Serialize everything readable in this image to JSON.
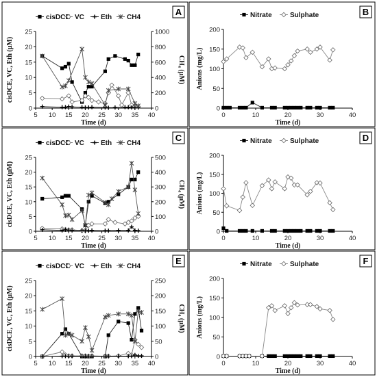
{
  "chart_data": [
    {
      "panel": "A",
      "type": "line",
      "xlabel": "Time (d)",
      "ylabel": "cisDCE, VC, Eth (μM)",
      "y2label": "CH₄ (μM)",
      "xlim": [
        5,
        40
      ],
      "ylim": [
        0,
        25
      ],
      "y2lim": [
        0,
        1000
      ],
      "xticks": [
        5,
        10,
        15,
        20,
        25,
        30,
        35,
        40
      ],
      "yticks": [
        0,
        5,
        10,
        15,
        20,
        25
      ],
      "y2ticks": [
        0,
        200,
        400,
        600,
        800,
        1000
      ],
      "legend": [
        "cisDCE",
        "VC",
        "Eth",
        "CH4"
      ],
      "series": [
        {
          "name": "cisDCE",
          "axis": "left",
          "marker": "square",
          "x": [
            7,
            13,
            14,
            15,
            16,
            19,
            20,
            21,
            22,
            26,
            27,
            29,
            32,
            33,
            34,
            35,
            36
          ],
          "y": [
            17,
            13,
            13.5,
            14.5,
            8.5,
            2,
            5,
            7,
            7,
            12,
            16,
            17,
            16,
            15.5,
            14,
            14,
            17.5
          ]
        },
        {
          "name": "VC",
          "axis": "left",
          "marker": "diamond-open",
          "x": [
            7,
            13,
            15,
            16,
            19,
            20,
            21,
            22,
            24,
            26,
            27,
            28,
            30,
            31,
            33,
            34,
            35,
            36
          ],
          "y": [
            3.2,
            3,
            4,
            2,
            2.5,
            4,
            3.5,
            2.5,
            2,
            1.5,
            5,
            7.5,
            4,
            1,
            5,
            1,
            0.5,
            0.5
          ]
        },
        {
          "name": "Eth",
          "axis": "left",
          "marker": "plus",
          "x": [
            7,
            13,
            14,
            15,
            16,
            19,
            20,
            21,
            22,
            26,
            27,
            29,
            32,
            33,
            34,
            35,
            36
          ],
          "y": [
            0.5,
            0.3,
            0.3,
            0.5,
            0.4,
            0.3,
            0.2,
            0.2,
            0.3,
            0.2,
            0.1,
            0.2,
            0.3,
            0.3,
            0.2,
            0.2,
            0.2
          ]
        },
        {
          "name": "CH4",
          "axis": "right",
          "marker": "asterisk",
          "x": [
            7,
            13,
            14,
            15,
            19,
            20,
            21,
            22,
            26,
            27,
            30,
            33,
            35,
            36
          ],
          "y": [
            680,
            275,
            290,
            360,
            770,
            400,
            340,
            320,
            40,
            230,
            250,
            250,
            60,
            30
          ]
        }
      ]
    },
    {
      "panel": "B",
      "type": "line",
      "xlabel": "Time (d)",
      "ylabel": "Anions (mg/L)",
      "xlim": [
        0,
        40
      ],
      "ylim": [
        0,
        200
      ],
      "xticks": [
        0,
        10,
        20,
        30,
        40
      ],
      "yticks": [
        0,
        50,
        100,
        150,
        200
      ],
      "legend": [
        "Nitrate",
        "Sulphate"
      ],
      "series": [
        {
          "name": "Nitrate",
          "marker": "square",
          "x": [
            0,
            1,
            2,
            5,
            6,
            7,
            9,
            12,
            15,
            16,
            19,
            20,
            21,
            22,
            23,
            24,
            26,
            27,
            29,
            30,
            33,
            34
          ],
          "y": [
            1,
            1,
            1,
            1,
            1,
            1,
            14,
            1,
            1,
            1,
            1,
            1,
            1,
            1,
            1,
            1,
            1,
            1,
            1,
            1,
            1,
            1
          ]
        },
        {
          "name": "Sulphate",
          "marker": "diamond-open",
          "x": [
            0,
            1,
            5,
            6,
            7,
            9,
            12,
            14,
            15,
            16,
            19,
            20,
            21,
            22,
            23,
            26,
            27,
            29,
            30,
            33,
            34
          ],
          "y": [
            118,
            125,
            155,
            153,
            128,
            142,
            105,
            125,
            100,
            102,
            100,
            110,
            120,
            133,
            145,
            150,
            142,
            150,
            155,
            122,
            148
          ]
        }
      ]
    },
    {
      "panel": "C",
      "type": "line",
      "xlabel": "Time (d)",
      "ylabel": "cisDCE, VC, Eth (μM)",
      "y2label": "CH₄ (μM)",
      "xlim": [
        5,
        40
      ],
      "ylim": [
        0,
        25
      ],
      "y2lim": [
        0,
        500
      ],
      "xticks": [
        5,
        10,
        15,
        20,
        25,
        30,
        35,
        40
      ],
      "yticks": [
        0,
        5,
        10,
        15,
        20,
        25
      ],
      "y2ticks": [
        0,
        100,
        200,
        300,
        400,
        500
      ],
      "legend": [
        "cisDCE",
        "VC",
        "Eth",
        "CH4"
      ],
      "series": [
        {
          "name": "cisDCE",
          "axis": "left",
          "marker": "square",
          "x": [
            7,
            13,
            14,
            15,
            19,
            20,
            21,
            22,
            26,
            27,
            30,
            33,
            34,
            35,
            36
          ],
          "y": [
            11,
            11.5,
            12,
            12,
            7.5,
            2,
            10,
            12,
            9.5,
            10,
            12.5,
            15,
            17.5,
            17.5,
            20
          ]
        },
        {
          "name": "VC",
          "axis": "left",
          "marker": "diamond-open",
          "x": [
            7,
            13,
            14,
            15,
            16,
            19,
            20,
            21,
            22,
            26,
            27,
            29,
            32,
            33,
            34,
            35,
            36
          ],
          "y": [
            1,
            0.8,
            0.6,
            0.5,
            0.5,
            0.2,
            0.3,
            2,
            2.5,
            2.5,
            4,
            3,
            2.5,
            3,
            3.5,
            4.5,
            5
          ]
        },
        {
          "name": "Eth",
          "axis": "left",
          "marker": "plus",
          "x": [
            7,
            13,
            14,
            15,
            16,
            19,
            20,
            21,
            22,
            26,
            27,
            30,
            33,
            34,
            35,
            36
          ],
          "y": [
            0.5,
            0.3,
            0.5,
            0.4,
            0.3,
            0.3,
            0.2,
            0.2,
            0.3,
            0.2,
            0.2,
            0.3,
            0.3,
            1.5,
            0.3,
            0.2
          ]
        },
        {
          "name": "CH4",
          "axis": "right",
          "marker": "asterisk",
          "x": [
            7,
            13,
            14,
            15,
            16,
            19,
            20,
            21,
            22,
            26,
            27,
            28,
            30,
            33,
            34,
            35,
            36
          ],
          "y": [
            360,
            180,
            105,
            110,
            80,
            140,
            40,
            245,
            260,
            195,
            180,
            220,
            270,
            300,
            460,
            280,
            120
          ]
        }
      ]
    },
    {
      "panel": "D",
      "type": "line",
      "xlabel": "Time (d)",
      "ylabel": "Anions (mg/L)",
      "xlim": [
        0,
        40
      ],
      "ylim": [
        0,
        200
      ],
      "xticks": [
        0,
        10,
        20,
        30,
        40
      ],
      "yticks": [
        0,
        50,
        100,
        150,
        200
      ],
      "legend": [
        "Nitrate",
        "Sulphate"
      ],
      "series": [
        {
          "name": "Nitrate",
          "marker": "square",
          "x": [
            0,
            1,
            5,
            6,
            7,
            9,
            12,
            15,
            16,
            19,
            20,
            21,
            22,
            23,
            24,
            26,
            27,
            29,
            30,
            33,
            34
          ],
          "y": [
            8,
            1,
            1,
            1,
            1,
            1,
            1,
            1,
            1,
            1,
            1,
            1,
            1,
            1,
            1,
            1,
            1,
            1,
            1,
            1,
            1
          ]
        },
        {
          "name": "Sulphate",
          "marker": "diamond-open",
          "x": [
            0,
            1,
            5,
            6,
            7,
            9,
            12,
            14,
            15,
            16,
            19,
            20,
            21,
            22,
            23,
            26,
            27,
            29,
            30,
            33,
            34
          ],
          "y": [
            112,
            67,
            55,
            90,
            128,
            68,
            120,
            135,
            112,
            130,
            112,
            143,
            140,
            122,
            122,
            96,
            105,
            128,
            127,
            75,
            57
          ]
        }
      ]
    },
    {
      "panel": "E",
      "type": "line",
      "xlabel": "Time (d)",
      "ylabel": "cisDCE, VC, Eth (μM)",
      "y2label": "CH₄ (μM)",
      "xlim": [
        5,
        40
      ],
      "ylim": [
        0,
        25
      ],
      "y2lim": [
        0,
        250
      ],
      "xticks": [
        5,
        10,
        15,
        20,
        25,
        30,
        35,
        40
      ],
      "yticks": [
        0,
        5,
        10,
        15,
        20,
        25
      ],
      "y2ticks": [
        0,
        50,
        100,
        150,
        200,
        250
      ],
      "legend": [
        "cisDCE",
        "VC",
        "Eth",
        "CH4"
      ],
      "series": [
        {
          "name": "cisDCE",
          "axis": "left",
          "marker": "square",
          "x": [
            7,
            13,
            14,
            15,
            19,
            20,
            21,
            22,
            26,
            27,
            30,
            33,
            34,
            35,
            36,
            37
          ],
          "y": [
            0,
            7.5,
            9,
            7.5,
            0,
            0,
            0,
            0,
            0,
            7,
            11.5,
            11,
            5.5,
            14,
            16,
            8.5
          ]
        },
        {
          "name": "VC",
          "axis": "left",
          "marker": "diamond-open",
          "x": [
            7,
            13,
            14,
            15,
            16,
            19,
            20,
            21,
            22,
            26,
            27,
            30,
            33,
            34,
            35,
            36,
            37
          ],
          "y": [
            0,
            1.5,
            0.5,
            0.2,
            0.2,
            0.2,
            0.2,
            0.1,
            0.2,
            0.1,
            0.1,
            0.2,
            1,
            0.5,
            5.5,
            4,
            3
          ]
        },
        {
          "name": "Eth",
          "axis": "left",
          "marker": "plus",
          "x": [
            7,
            13,
            14,
            15,
            16,
            19,
            20,
            21,
            22,
            26,
            27,
            30,
            33,
            34,
            35,
            36,
            37
          ],
          "y": [
            0,
            0.1,
            0.1,
            0.1,
            0.1,
            0.1,
            0.1,
            0.1,
            0.1,
            0.1,
            0.1,
            0.1,
            0.1,
            0.1,
            0.5,
            0.2,
            0.2
          ]
        },
        {
          "name": "CH4",
          "axis": "right",
          "marker": "asterisk",
          "x": [
            7,
            13,
            14,
            15,
            16,
            19,
            20,
            21,
            22,
            26,
            27,
            30,
            33,
            34,
            35,
            36,
            37
          ],
          "y": [
            155,
            190,
            70,
            75,
            70,
            50,
            95,
            65,
            20,
            130,
            135,
            140,
            140,
            135,
            50,
            150,
            145
          ]
        }
      ]
    },
    {
      "panel": "F",
      "type": "line",
      "xlabel": "Time (d)",
      "ylabel": "Anions (mg/L)",
      "xlim": [
        0,
        40
      ],
      "ylim": [
        0,
        200
      ],
      "xticks": [
        0,
        10,
        20,
        30,
        40
      ],
      "yticks": [
        0,
        50,
        100,
        150,
        200
      ],
      "legend": [
        "Nitrate",
        "Sulphate"
      ],
      "series": [
        {
          "name": "Nitrate",
          "marker": "square",
          "x": [
            0,
            1,
            5,
            6,
            7,
            8,
            12,
            14,
            15,
            16,
            19,
            20,
            21,
            22,
            23,
            24,
            26,
            27,
            29,
            30,
            33,
            34
          ],
          "y": [
            1,
            1,
            1,
            1,
            1,
            1,
            1,
            1,
            1,
            1,
            1,
            1,
            1,
            1,
            1,
            1,
            1,
            1,
            1,
            1,
            1,
            1
          ]
        },
        {
          "name": "Sulphate",
          "marker": "diamond-open",
          "x": [
            0,
            1,
            5,
            6,
            7,
            8,
            12,
            14,
            15,
            16,
            19,
            20,
            21,
            22,
            23,
            26,
            27,
            29,
            30,
            33,
            34
          ],
          "y": [
            1,
            1,
            1,
            1,
            1,
            1,
            1,
            125,
            130,
            118,
            130,
            110,
            125,
            138,
            132,
            133,
            133,
            128,
            122,
            118,
            95
          ]
        }
      ]
    }
  ]
}
